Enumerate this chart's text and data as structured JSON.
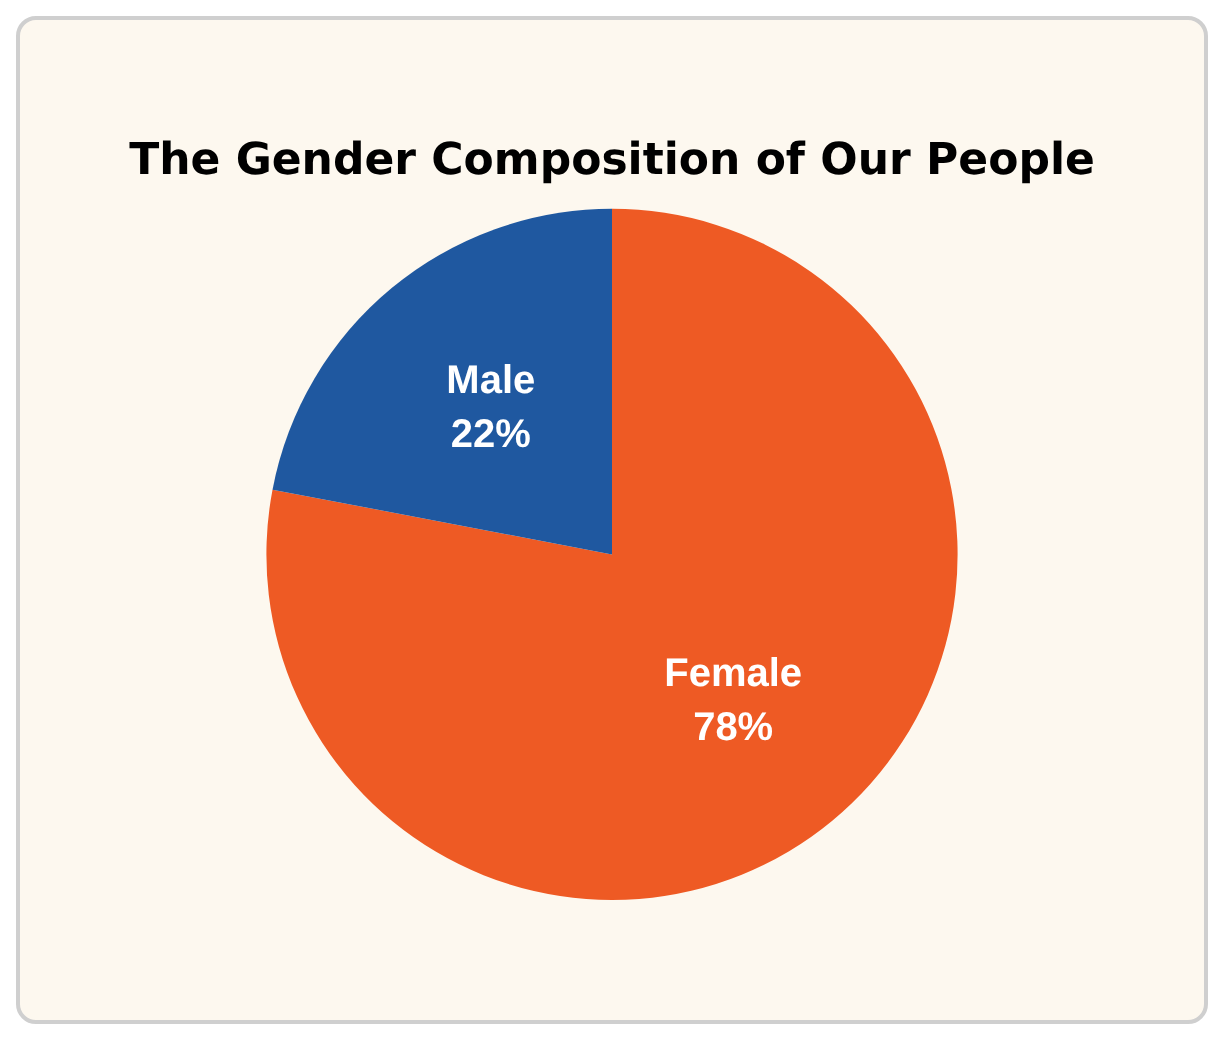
{
  "chart_data": {
    "type": "pie",
    "title": "The Gender Composition of Our People",
    "categories": [
      "Female",
      "Male"
    ],
    "values": [
      78,
      22
    ],
    "colors": [
      "#ee5a24",
      "#1f58a0"
    ],
    "value_labels": [
      "78%",
      "22%"
    ],
    "legend": false
  }
}
